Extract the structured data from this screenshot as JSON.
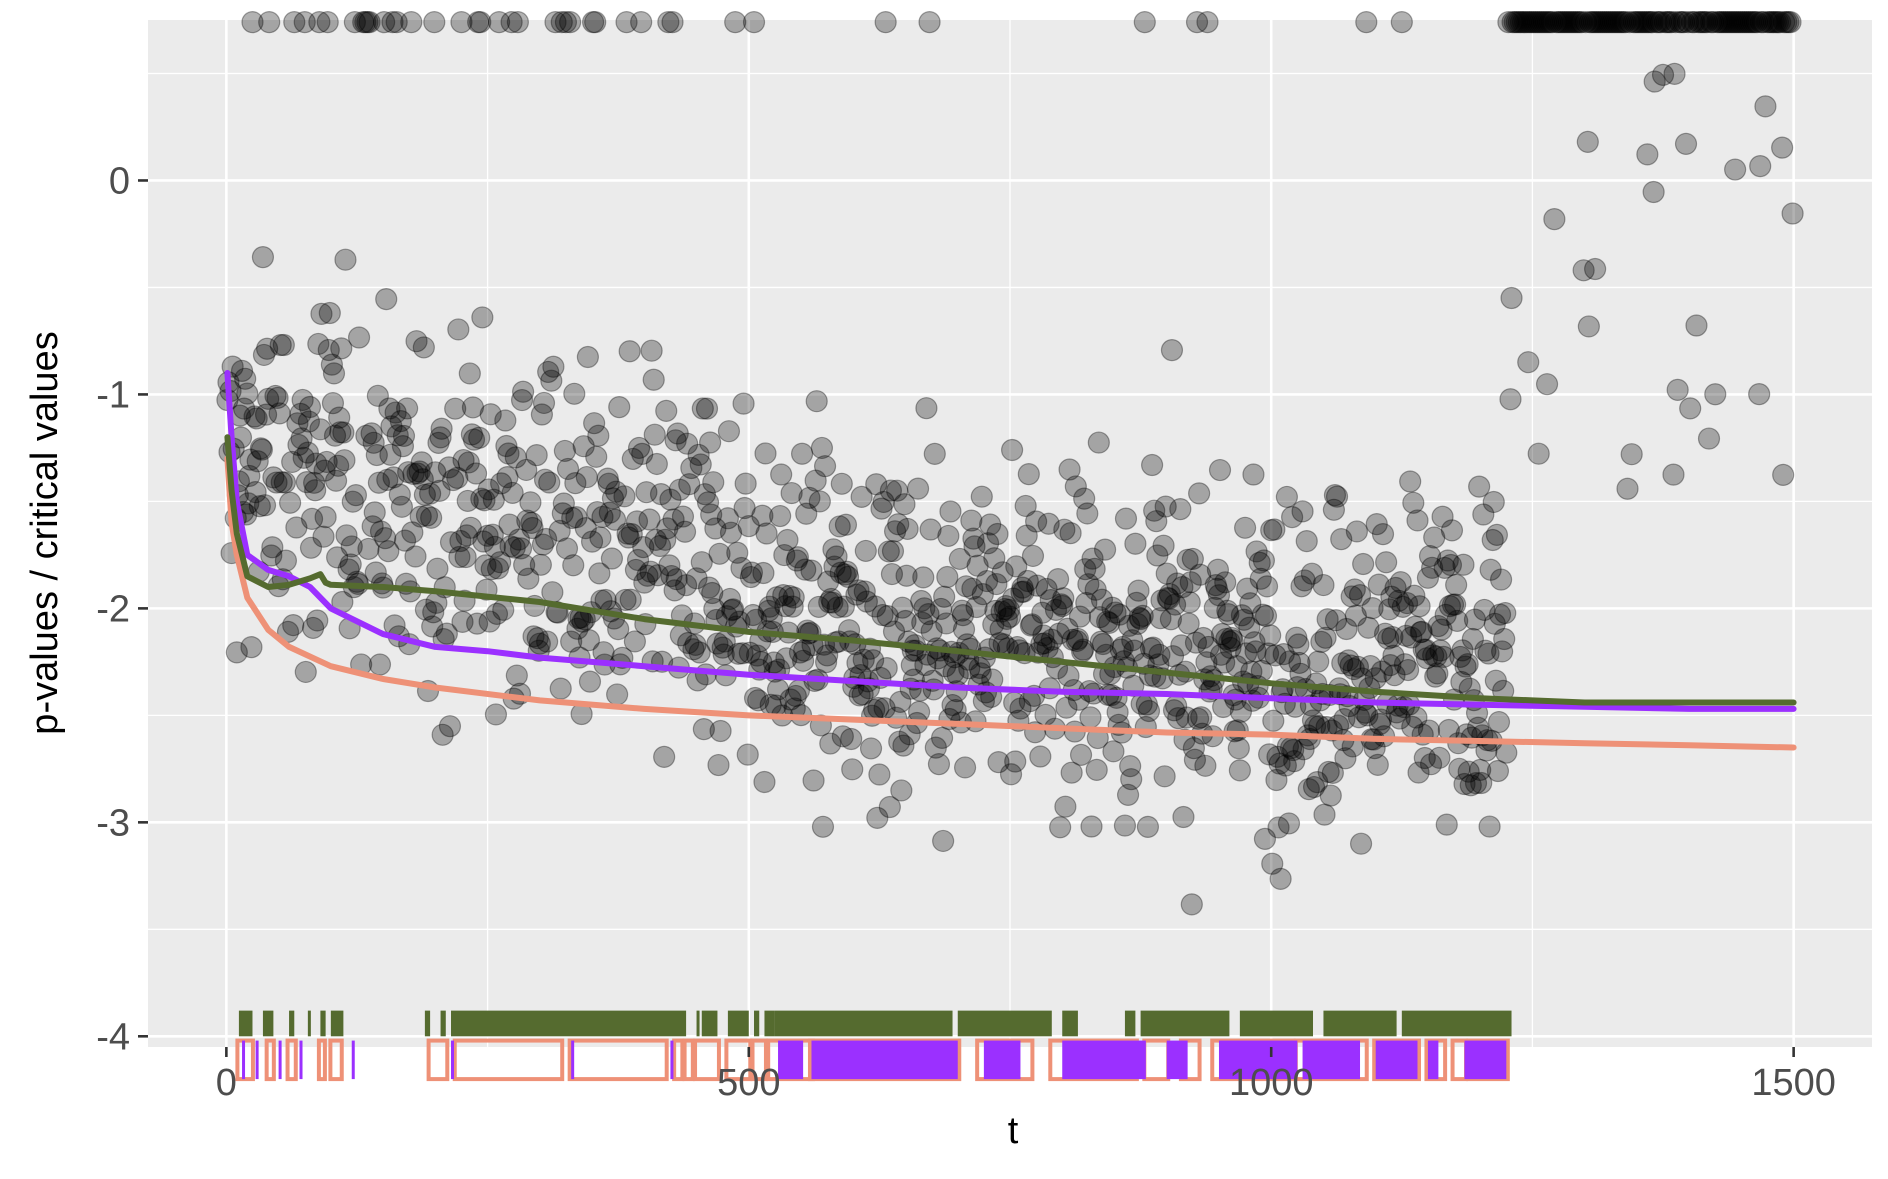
{
  "chart_data": {
    "type": "scatter",
    "title": "",
    "xlabel": "t",
    "ylabel": "p-values / critical values",
    "xlim": [
      -75,
      1575
    ],
    "ylim": [
      -4.05,
      0.75
    ],
    "x_ticks": [
      0,
      500,
      1000,
      1500
    ],
    "x_tick_labels": [
      "0",
      "500",
      "1000",
      "1500"
    ],
    "y_ticks": [
      -4,
      -3,
      -2,
      -1,
      0
    ],
    "y_tick_labels": [
      "-4",
      "-3",
      "-2",
      "-1",
      "0"
    ],
    "grid": true,
    "legend": "none",
    "colors": {
      "panel": "#EBEBEB",
      "grid": "#FFFFFF",
      "points": "#000000",
      "green": "#556B2F",
      "purple": "#9B30FF",
      "salmon": "#EE9177"
    },
    "points_summary": {
      "n_shown": 1500,
      "cap_value": 0.74,
      "dense_region": [
        500,
        1225
      ]
    },
    "series": [
      {
        "color_key": "salmon",
        "x": [
          1,
          5,
          10,
          20,
          40,
          60,
          100,
          150,
          200,
          300,
          400,
          500,
          600,
          700,
          800,
          900,
          1000,
          1100,
          1200,
          1300,
          1400,
          1500
        ],
        "y": [
          -1.3,
          -1.6,
          -1.75,
          -1.95,
          -2.1,
          -2.18,
          -2.27,
          -2.33,
          -2.37,
          -2.43,
          -2.47,
          -2.5,
          -2.52,
          -2.54,
          -2.56,
          -2.58,
          -2.59,
          -2.61,
          -2.62,
          -2.63,
          -2.64,
          -2.65
        ]
      },
      {
        "color_key": "purple",
        "x": [
          1,
          5,
          10,
          20,
          40,
          60,
          80,
          100,
          150,
          200,
          250,
          300,
          400,
          500,
          600,
          700,
          800,
          900,
          1000,
          1100,
          1200,
          1300,
          1400,
          1500
        ],
        "y": [
          -0.9,
          -1.2,
          -1.5,
          -1.75,
          -1.82,
          -1.85,
          -1.9,
          -2.0,
          -2.12,
          -2.18,
          -2.2,
          -2.23,
          -2.27,
          -2.31,
          -2.34,
          -2.37,
          -2.39,
          -2.4,
          -2.42,
          -2.44,
          -2.45,
          -2.46,
          -2.47,
          -2.47
        ]
      },
      {
        "color_key": "green",
        "x": [
          1,
          5,
          10,
          20,
          40,
          60,
          80,
          90,
          95,
          100,
          150,
          200,
          300,
          400,
          500,
          600,
          700,
          800,
          900,
          1000,
          1100,
          1200,
          1250,
          1300,
          1400,
          1500
        ],
        "y": [
          -1.2,
          -1.45,
          -1.65,
          -1.85,
          -1.9,
          -1.89,
          -1.86,
          -1.84,
          -1.88,
          -1.89,
          -1.9,
          -1.92,
          -1.97,
          -2.05,
          -2.11,
          -2.15,
          -2.2,
          -2.25,
          -2.3,
          -2.35,
          -2.39,
          -2.42,
          -2.43,
          -2.44,
          -2.44,
          -2.44
        ]
      }
    ],
    "rugs": [
      {
        "color_key": "green",
        "y_level": "-3.9 to -4.08",
        "intervals": [
          [
            12,
            25
          ],
          [
            35,
            45
          ],
          [
            60,
            65
          ],
          [
            78,
            80
          ],
          [
            90,
            95
          ],
          [
            100,
            112
          ],
          [
            190,
            195
          ],
          [
            205,
            210
          ],
          [
            215,
            440
          ],
          [
            450,
            452
          ],
          [
            455,
            470
          ],
          [
            480,
            500
          ],
          [
            505,
            510
          ],
          [
            515,
            525
          ],
          [
            525,
            695
          ],
          [
            700,
            790
          ],
          [
            800,
            815
          ],
          [
            860,
            870
          ],
          [
            875,
            960
          ],
          [
            970,
            1040
          ],
          [
            1050,
            1120
          ],
          [
            1125,
            1230
          ]
        ]
      },
      {
        "color_key": "salmon",
        "y_level": "-4.02 to -4.17",
        "intervals": [
          [
            12,
            24
          ],
          [
            40,
            44
          ],
          [
            60,
            65
          ],
          [
            90,
            92
          ],
          [
            101,
            109
          ],
          [
            195,
            210
          ],
          [
            220,
            320
          ],
          [
            330,
            420
          ],
          [
            430,
            435
          ],
          [
            440,
            445
          ],
          [
            450,
            470
          ],
          [
            480,
            500
          ],
          [
            505,
            515
          ],
          [
            520,
            560
          ],
          [
            560,
            700
          ],
          [
            720,
            770
          ],
          [
            790,
            870
          ],
          [
            880,
            900
          ],
          [
            915,
            930
          ],
          [
            945,
            1020
          ],
          [
            1025,
            1090
          ],
          [
            1100,
            1140
          ],
          [
            1150,
            1165
          ],
          [
            1175,
            1185
          ],
          [
            1190,
            1225
          ]
        ]
      },
      {
        "color_key": "purple",
        "y_level": "-4.02 to -4.17",
        "intervals": [
          [
            15,
            16
          ],
          [
            28,
            29
          ],
          [
            50,
            51
          ],
          [
            70,
            71
          ],
          [
            120,
            121
          ],
          [
            215,
            216
          ],
          [
            330,
            331
          ],
          [
            425,
            426
          ],
          [
            528,
            552
          ],
          [
            560,
            700
          ],
          [
            725,
            760
          ],
          [
            800,
            880
          ],
          [
            900,
            920
          ],
          [
            950,
            1025
          ],
          [
            1030,
            1085
          ],
          [
            1100,
            1140
          ],
          [
            1150,
            1160
          ],
          [
            1185,
            1225
          ]
        ]
      }
    ]
  }
}
